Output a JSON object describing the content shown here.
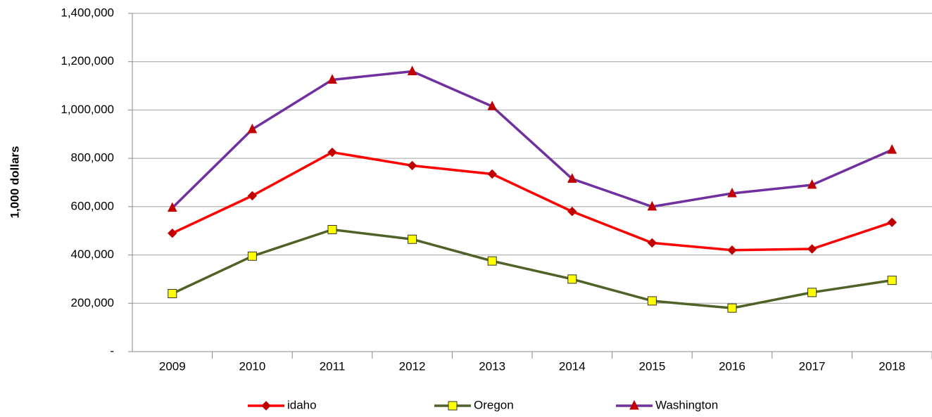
{
  "chart_data": {
    "type": "line",
    "y_label": "1,000 dollars",
    "categories": [
      "2009",
      "2010",
      "2011",
      "2012",
      "2013",
      "2014",
      "2015",
      "2016",
      "2017",
      "2018"
    ],
    "series": [
      {
        "name": "idaho",
        "color": "#ff0000",
        "marker": "diamond",
        "marker_color": "#c00000",
        "values": [
          490000,
          645000,
          825000,
          770000,
          735000,
          580000,
          450000,
          420000,
          425000,
          535000
        ]
      },
      {
        "name": "Oregon",
        "color": "#4f6228",
        "marker": "square",
        "marker_color": "#ffff00",
        "values": [
          240000,
          395000,
          505000,
          465000,
          375000,
          300000,
          210000,
          180000,
          245000,
          295000
        ]
      },
      {
        "name": "Washington",
        "color": "#7030a0",
        "marker": "triangle",
        "marker_color": "#c00000",
        "values": [
          595000,
          920000,
          1125000,
          1160000,
          1015000,
          715000,
          600000,
          655000,
          690000,
          835000
        ]
      }
    ],
    "ylim": [
      0,
      1400000
    ],
    "yticks": [
      {
        "value": 0,
        "label": "-"
      },
      {
        "value": 200000,
        "label": "200,000"
      },
      {
        "value": 400000,
        "label": "400,000"
      },
      {
        "value": 600000,
        "label": "600,000"
      },
      {
        "value": 800000,
        "label": "800,000"
      },
      {
        "value": 1000000,
        "label": "1,000,000"
      },
      {
        "value": 1200000,
        "label": "1,200,000"
      },
      {
        "value": 1400000,
        "label": "1,400,000"
      }
    ],
    "grid": true,
    "legend": "bottom"
  }
}
